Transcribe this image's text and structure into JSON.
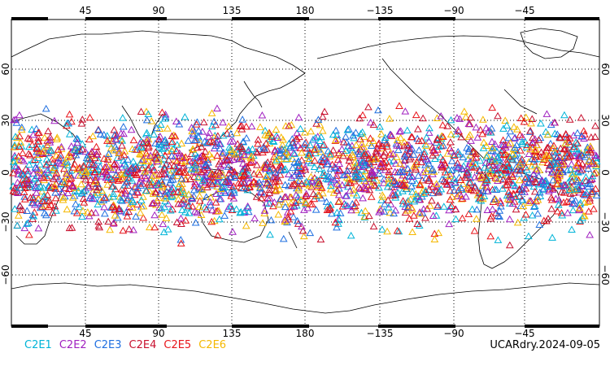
{
  "map": {
    "top_lon_labels": [
      "45",
      "90",
      "135",
      "180",
      "−135",
      "−90",
      "−45"
    ],
    "bottom_lon_labels": [
      "45",
      "90",
      "135",
      "180",
      "−135",
      "−90",
      "−45"
    ],
    "left_lat_labels": [
      "60",
      "30",
      "0",
      "−30",
      "−60"
    ],
    "right_lat_labels": [
      "60",
      "30",
      "0",
      "−30",
      "−60"
    ],
    "land_color": "#000000",
    "grid_color": "#000000"
  },
  "legend": [
    {
      "label": "C2E1",
      "color": "#00b4d8"
    },
    {
      "label": "C2E2",
      "color": "#a020c0"
    },
    {
      "label": "C2E3",
      "color": "#1f6fe0"
    },
    {
      "label": "C2E4",
      "color": "#c8102e"
    },
    {
      "label": "C2E5",
      "color": "#e8141a"
    },
    {
      "label": "C2E6",
      "color": "#f5b800"
    }
  ],
  "footer": {
    "stamp": "UCARdry.2024-09-05"
  }
}
